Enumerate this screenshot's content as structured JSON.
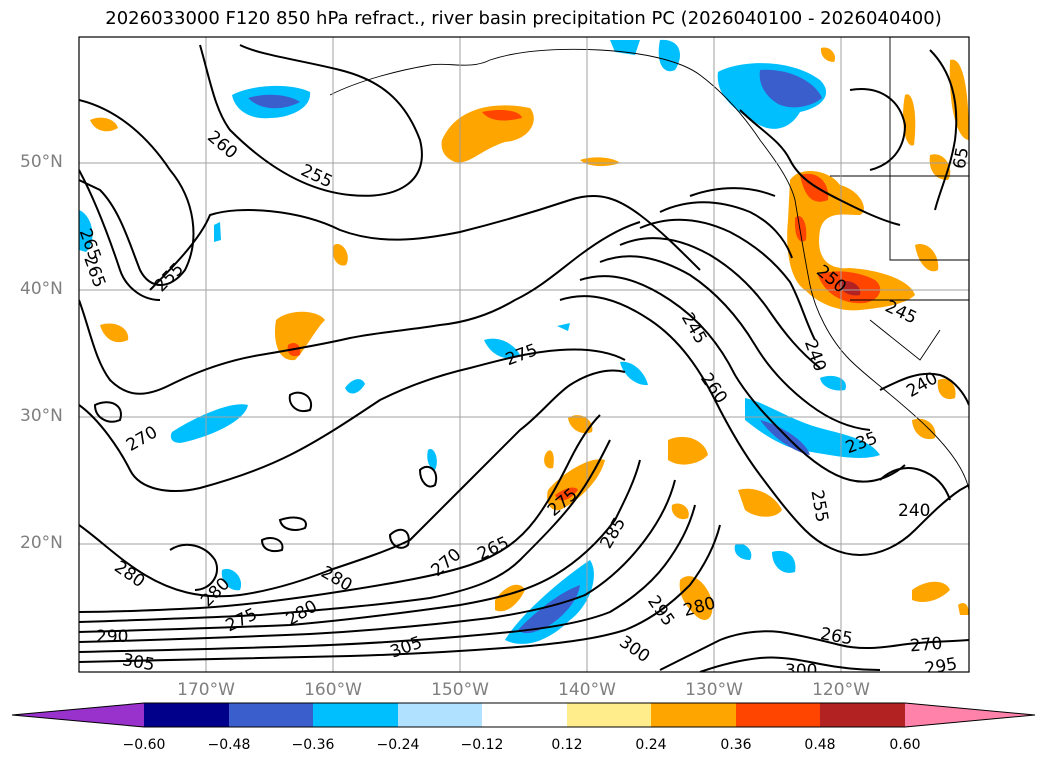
{
  "title": "2026033000 F120 850 hPa refract., river basin precipitation PC (2026040100 - 2026040400)",
  "axes": {
    "lat_labels": [
      "50°N",
      "40°N",
      "30°N",
      "20°N"
    ],
    "lon_labels": [
      "170°W",
      "160°W",
      "150°W",
      "140°W",
      "130°W",
      "120°W"
    ]
  },
  "contour_labels": [
    "260",
    "255",
    "255",
    "265",
    "265",
    "270",
    "275",
    "245",
    "250",
    "245",
    "240",
    "240",
    "260",
    "235",
    "255",
    "240",
    "275",
    "285",
    "270",
    "265",
    "280",
    "280",
    "280",
    "275",
    "280",
    "290",
    "305",
    "305",
    "295",
    "280",
    "300",
    "265",
    "270",
    "300",
    "295",
    "65"
  ],
  "colorbar": {
    "ticks": [
      "−0.60",
      "−0.48",
      "−0.36",
      "−0.24",
      "−0.12",
      "0.12",
      "0.24",
      "0.36",
      "0.48",
      "0.60"
    ],
    "colors": [
      "#9932cc",
      "#00008b",
      "#3a5fcd",
      "#00bfff",
      "#b0e2ff",
      "#ffffff",
      "#ffec8b",
      "#ffa500",
      "#ff4500",
      "#b22222",
      "#ff82ab"
    ]
  }
}
